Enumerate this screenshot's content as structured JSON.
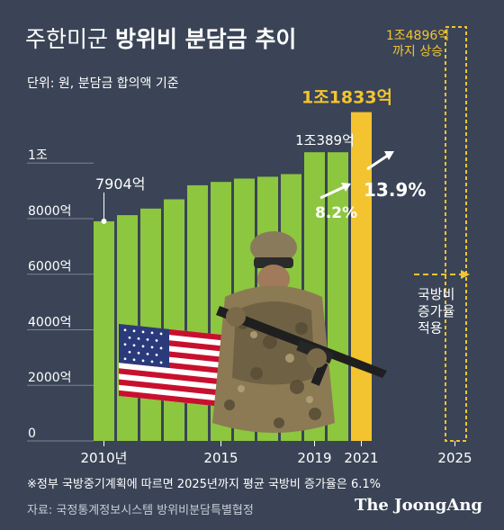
{
  "header": {
    "title_light": "주한미군",
    "title_bold": "방위비 분담금 추이",
    "unit_note": "단위: 원, 분담금 합의액 기준"
  },
  "chart_data": {
    "type": "bar",
    "categories": [
      "2010",
      "2011",
      "2012",
      "2013",
      "2014",
      "2015",
      "2016",
      "2017",
      "2018",
      "2019",
      "2020",
      "2021",
      "2022",
      "2023",
      "2024",
      "2025"
    ],
    "values": [
      7904,
      8125,
      8361,
      8695,
      9200,
      9320,
      9441,
      9507,
      9602,
      10389,
      10389,
      11833,
      null,
      null,
      null,
      14896
    ],
    "x_tick_labels": [
      {
        "category": "2010",
        "label": "2010년"
      },
      {
        "category": "2015",
        "label": "2015"
      },
      {
        "category": "2019",
        "label": "2019"
      },
      {
        "category": "2021",
        "label": "2021"
      },
      {
        "category": "2025",
        "label": "2025"
      }
    ],
    "y_tick_labels": [
      {
        "value": 0,
        "label": "0"
      },
      {
        "value": 2000,
        "label": "2000억"
      },
      {
        "value": 4000,
        "label": "4000억"
      },
      {
        "value": 6000,
        "label": "6000억"
      },
      {
        "value": 8000,
        "label": "8000억"
      },
      {
        "value": 10000,
        "label": "1조"
      }
    ],
    "ylim": [
      0,
      14896
    ],
    "data_labels": {
      "2010": "7904억",
      "2019": "1조389억",
      "2021": "1조1833억",
      "2025": "1조4896억\n까지 상승"
    },
    "growth_labels": [
      {
        "category": "2020",
        "label": "8.2%"
      },
      {
        "category": "2021",
        "label": "13.9%"
      }
    ],
    "projection_label": "국방비\n증가율\n적용",
    "colors": {
      "background": "#3a4456",
      "bar": "#8dc63f",
      "highlight": "#f4c430",
      "projection_outline": "#f4c430",
      "gridline": "#7a8496",
      "text": "#ffffff"
    }
  },
  "footer": {
    "note": "※정부 국방중기계획에 따르면 2025년까지 평균 국방비 증가율은 6.1%",
    "source": "자료: 국정통계정보시스템 방위비분담특별협정",
    "brand": "The JoongAng"
  },
  "illustration": {
    "icons": [
      "us-flag-icon",
      "soldier-icon"
    ]
  }
}
